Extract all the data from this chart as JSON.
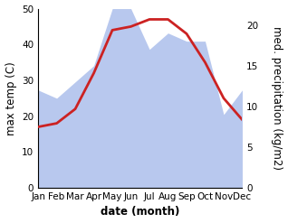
{
  "months": [
    "Jan",
    "Feb",
    "Mar",
    "Apr",
    "May",
    "Jun",
    "Jul",
    "Aug",
    "Sep",
    "Oct",
    "Nov",
    "Dec"
  ],
  "temperature": [
    17,
    18,
    22,
    32,
    44,
    45,
    47,
    47,
    43,
    35,
    25,
    19
  ],
  "precipitation": [
    12,
    11,
    13,
    15,
    22,
    22,
    17,
    19,
    18,
    18,
    9,
    12
  ],
  "temp_color": "#cc2222",
  "precip_fill_color": "#b8c8ee",
  "ylim_left": [
    0,
    50
  ],
  "ylim_right": [
    0,
    22
  ],
  "ylabel_left": "max temp (C)",
  "ylabel_right": "med. precipitation (kg/m2)",
  "xlabel": "date (month)",
  "bg_color": "#ffffff",
  "label_fontsize": 8.5,
  "tick_fontsize": 7.5
}
